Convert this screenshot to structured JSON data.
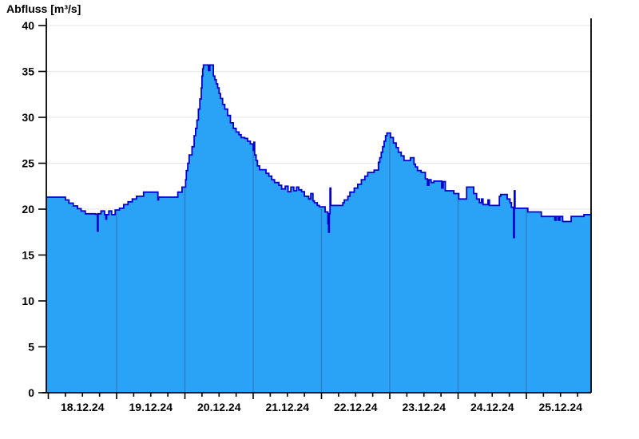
{
  "title": "Abfluss [m³/s]",
  "chart_data": {
    "type": "area",
    "title": "Abfluss [m³/s]",
    "ylabel": "Abfluss [m³/s]",
    "xlabel": "",
    "ylim": [
      0,
      40
    ],
    "y_ticks": [
      0,
      5,
      10,
      15,
      20,
      25,
      30,
      35,
      40
    ],
    "x_day_labels": [
      "18.12.24",
      "19.12.24",
      "20.12.24",
      "21.12.24",
      "22.12.24",
      "23.12.24",
      "24.12.24",
      "25.12.24"
    ],
    "x_minor_tick_hours": 6,
    "legend_position": "none",
    "grid": {
      "horizontal": true,
      "vertical_day_separators": true
    },
    "colors": {
      "area_fill": "#2aa3f7",
      "curve_line": "#0000cd",
      "day_gridline": "#2e7cbe",
      "h_gridline": "#e9e9e9",
      "axis": "#000000",
      "text": "#000000"
    },
    "series": [
      {
        "name": "Abfluss",
        "unit": "m³/s",
        "time_basis": "hours since 18.12.24 00:00, step-after",
        "t_start": -0.7,
        "t_end": 190.7,
        "points": [
          [
            -0.7,
            21.3
          ],
          [
            6,
            21.0
          ],
          [
            7.25,
            20.65
          ],
          [
            8.75,
            20.35
          ],
          [
            10.25,
            20.05
          ],
          [
            11.5,
            19.8
          ],
          [
            13,
            19.5
          ],
          [
            16.5,
            19.45
          ],
          [
            17.25,
            17.6
          ],
          [
            17.5,
            19.5
          ],
          [
            18.5,
            19.8
          ],
          [
            19.75,
            19.4
          ],
          [
            20.25,
            18.9
          ],
          [
            20.5,
            19.4
          ],
          [
            21.25,
            19.8
          ],
          [
            22.25,
            19.4
          ],
          [
            23.5,
            19.9
          ],
          [
            25,
            20.1
          ],
          [
            26.5,
            20.5
          ],
          [
            28,
            20.8
          ],
          [
            29.5,
            21.1
          ],
          [
            31,
            21.4
          ],
          [
            33.5,
            21.85
          ],
          [
            38.5,
            21.0
          ],
          [
            38.75,
            21.3
          ],
          [
            45.5,
            21.85
          ],
          [
            47,
            22.4
          ],
          [
            48.25,
            23.2
          ],
          [
            48.5,
            24.2
          ],
          [
            49,
            25.0
          ],
          [
            49.5,
            25.9
          ],
          [
            50.5,
            26.8
          ],
          [
            51.25,
            28.0
          ],
          [
            51.75,
            28.8
          ],
          [
            52.25,
            29.7
          ],
          [
            52.75,
            30.9
          ],
          [
            53.25,
            32.0
          ],
          [
            53.75,
            33.2
          ],
          [
            54,
            34.5
          ],
          [
            54.25,
            35.3
          ],
          [
            54.5,
            35.7
          ],
          [
            56.25,
            35.1
          ],
          [
            56.75,
            35.7
          ],
          [
            58,
            34.5
          ],
          [
            58.5,
            34.1
          ],
          [
            59,
            33.65
          ],
          [
            59.5,
            33.2
          ],
          [
            60,
            32.6
          ],
          [
            60.5,
            32.05
          ],
          [
            61.25,
            31.4
          ],
          [
            62,
            30.9
          ],
          [
            63,
            30.2
          ],
          [
            64,
            29.4
          ],
          [
            65,
            28.8
          ],
          [
            66,
            28.4
          ],
          [
            67,
            28.1
          ],
          [
            67.75,
            27.8
          ],
          [
            69,
            27.7
          ],
          [
            70,
            27.4
          ],
          [
            71,
            27.1
          ],
          [
            72,
            26.4
          ],
          [
            72.25,
            27.3
          ],
          [
            72.5,
            25.9
          ],
          [
            73,
            25.3
          ],
          [
            73.5,
            24.7
          ],
          [
            74.25,
            24.3
          ],
          [
            76.5,
            23.9
          ],
          [
            77.5,
            23.6
          ],
          [
            78.5,
            23.2
          ],
          [
            79.5,
            22.9
          ],
          [
            81,
            22.6
          ],
          [
            82,
            22.2
          ],
          [
            83.25,
            22.5
          ],
          [
            84.25,
            21.9
          ],
          [
            85.25,
            22.4
          ],
          [
            86.25,
            22.0
          ],
          [
            87.25,
            22.4
          ],
          [
            88,
            22.1
          ],
          [
            89,
            21.9
          ],
          [
            90,
            21.4
          ],
          [
            91.5,
            21.1
          ],
          [
            92.25,
            21.7
          ],
          [
            93,
            20.9
          ],
          [
            93.5,
            20.7
          ],
          [
            94.5,
            20.4
          ],
          [
            95.25,
            20.25
          ],
          [
            97.25,
            19.7
          ],
          [
            98.25,
            18.4
          ],
          [
            98.5,
            17.5
          ],
          [
            98.75,
            19.5
          ],
          [
            99,
            22.3
          ],
          [
            99.25,
            20.4
          ],
          [
            103.5,
            20.7
          ],
          [
            104,
            21.0
          ],
          [
            105.25,
            21.4
          ],
          [
            106,
            21.85
          ],
          [
            107.5,
            22.3
          ],
          [
            108.75,
            22.7
          ],
          [
            110,
            23.2
          ],
          [
            111.25,
            23.6
          ],
          [
            112.25,
            24.0
          ],
          [
            114.5,
            24.25
          ],
          [
            116,
            25.1
          ],
          [
            116.5,
            25.6
          ],
          [
            117,
            26.2
          ],
          [
            117.5,
            26.8
          ],
          [
            118,
            27.4
          ],
          [
            118.5,
            28.0
          ],
          [
            119,
            28.3
          ],
          [
            120.25,
            27.8
          ],
          [
            121.25,
            27.2
          ],
          [
            122.25,
            26.7
          ],
          [
            123,
            26.2
          ],
          [
            124,
            25.8
          ],
          [
            125,
            25.3
          ],
          [
            127.25,
            25.6
          ],
          [
            128.5,
            24.9
          ],
          [
            129,
            24.6
          ],
          [
            129.75,
            24.2
          ],
          [
            131,
            24.0
          ],
          [
            132.5,
            23.3
          ],
          [
            133.25,
            22.6
          ],
          [
            133.75,
            23.2
          ],
          [
            134.5,
            22.9
          ],
          [
            135.5,
            23.05
          ],
          [
            138.25,
            22.3
          ],
          [
            138.75,
            23.0
          ],
          [
            139.5,
            22.0
          ],
          [
            142.5,
            21.7
          ],
          [
            144.25,
            21.1
          ],
          [
            147,
            22.4
          ],
          [
            149.5,
            21.7
          ],
          [
            150.5,
            21.1
          ],
          [
            151.5,
            20.7
          ],
          [
            152.25,
            21.1
          ],
          [
            152.75,
            20.5
          ],
          [
            154.5,
            21.0
          ],
          [
            155,
            20.4
          ],
          [
            158.5,
            21.4
          ],
          [
            159,
            21.6
          ],
          [
            161.25,
            21.1
          ],
          [
            162.25,
            20.7
          ],
          [
            162.75,
            20.2
          ],
          [
            163.5,
            16.9
          ],
          [
            163.75,
            22.0
          ],
          [
            164,
            20.1
          ],
          [
            168.5,
            19.7
          ],
          [
            173.25,
            19.2
          ],
          [
            178,
            18.8
          ],
          [
            178.5,
            19.2
          ],
          [
            179.25,
            18.8
          ],
          [
            179.75,
            19.2
          ],
          [
            180.75,
            18.65
          ],
          [
            183.75,
            19.2
          ],
          [
            188.25,
            19.4
          ]
        ]
      }
    ]
  }
}
